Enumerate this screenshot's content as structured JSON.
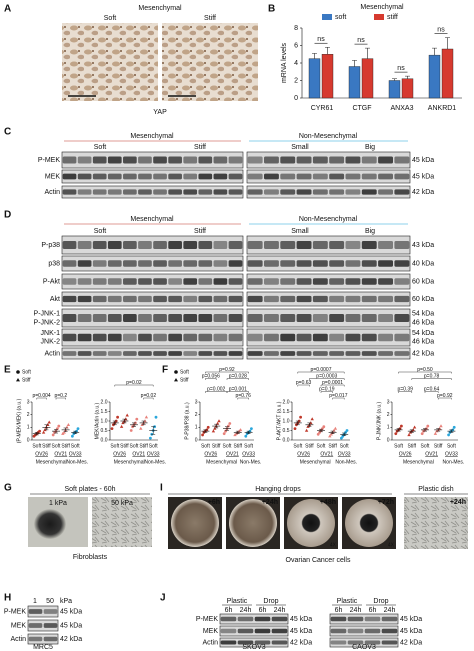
{
  "panels": {
    "A": {
      "label": "A",
      "title": "Mesenchymal",
      "conditions": [
        "Soft",
        "Stiff"
      ],
      "caption": "YAP"
    },
    "B": {
      "label": "B",
      "chart_data": {
        "type": "bar",
        "title": "Mesenchymal",
        "y_label": "mRNA levels",
        "categories": [
          "CYR61",
          "CTGF",
          "ANXA3",
          "ANKRD1"
        ],
        "series": [
          {
            "name": "soft",
            "color": "#3a78c2",
            "values": [
              4.5,
              3.6,
              2.0,
              4.9
            ],
            "errors": [
              0.6,
              0.7,
              0.2,
              0.8
            ]
          },
          {
            "name": "stiff",
            "color": "#d63a2f",
            "values": [
              5.0,
              4.5,
              2.2,
              5.6
            ],
            "errors": [
              0.8,
              1.2,
              0.3,
              1.3
            ]
          }
        ],
        "ylim": [
          0,
          8
        ],
        "yticks": [
          0,
          2,
          4,
          6,
          8
        ],
        "annotations": [
          "ns",
          "ns",
          "ns",
          "ns"
        ]
      }
    },
    "C": {
      "label": "C",
      "groups": [
        "Mesenchymal",
        "Non-Mesenchymal"
      ],
      "subgroups": [
        "Soft",
        "Stiff",
        "Small",
        "Big"
      ],
      "rows": [
        {
          "names": [
            "P-MEK"
          ],
          "kda": [
            "45 kDa"
          ]
        },
        {
          "names": [
            "MEK"
          ],
          "kda": [
            "45 kDa"
          ]
        },
        {
          "names": [
            "Actin"
          ],
          "kda": [
            "42 kDa"
          ]
        }
      ]
    },
    "D": {
      "label": "D",
      "groups": [
        "Mesenchymal",
        "Non-Mesenchymal"
      ],
      "subgroups": [
        "Soft",
        "Stiff",
        "Small",
        "Big"
      ],
      "rows": [
        {
          "names": [
            "P-p38"
          ],
          "kda": [
            "43 kDa"
          ]
        },
        {
          "names": [
            "p38"
          ],
          "kda": [
            "40 kDa"
          ]
        },
        {
          "names": [
            "P-Akt"
          ],
          "kda": [
            "60 kDa"
          ]
        },
        {
          "names": [
            "Akt"
          ],
          "kda": [
            "60 kDa"
          ]
        },
        {
          "names": [
            "P-JNK-1",
            "P-JNK-2"
          ],
          "kda": [
            "54 kDa",
            "46 kDa"
          ]
        },
        {
          "names": [
            "JNK-1",
            "JNK-2"
          ],
          "kda": [
            "54 kDa",
            "46 kDa"
          ]
        },
        {
          "names": [
            "Actin"
          ],
          "kda": [
            "42 kDa"
          ]
        }
      ]
    },
    "E": {
      "label": "E",
      "legend": [
        "Soft",
        "Stiff"
      ],
      "x_labels": [
        "Soft",
        "Stiff",
        "Soft",
        "Stiff",
        "Soft"
      ],
      "cell_lines": [
        "OV26",
        "OV21",
        "OV33"
      ],
      "colors": [
        "#c0392b",
        "#e8817a",
        "#2aa7dc"
      ],
      "groups": [
        "Mesenchymal",
        "Non-Mes."
      ],
      "plots": [
        {
          "y_label": "(P-MEK/MEK) (a.u.)",
          "ylim": [
            0,
            3
          ],
          "yticks": [
            0,
            1,
            2,
            3
          ],
          "data": [
            {
              "points": [
                0.3,
                0.4,
                0.5,
                0.6,
                0.7
              ],
              "mean": 0.5,
              "err": 0.1
            },
            {
              "points": [
                0.6,
                0.8,
                1.0,
                1.2,
                1.4
              ],
              "mean": 1.0,
              "err": 0.2
            },
            {
              "points": [
                0.4,
                0.6,
                0.7,
                0.9,
                1.1
              ],
              "mean": 0.7,
              "err": 0.15
            },
            {
              "points": [
                0.5,
                0.6,
                0.8,
                1.0,
                1.2
              ],
              "mean": 0.8,
              "err": 0.15
            },
            {
              "points": [
                0.3,
                0.5,
                0.6,
                0.7,
                0.9
              ],
              "mean": 0.6,
              "err": 0.1
            }
          ],
          "annotations": [
            "p=0.004",
            "p=0.2"
          ]
        },
        {
          "y_label": "MEK/Actin (a.u.)",
          "ylim": [
            0,
            2
          ],
          "yticks": [
            {
              "value": 0,
              "label": "0.0"
            },
            0.5,
            {
              "value": 1,
              "label": "1.0"
            },
            1.5,
            {
              "value": 2,
              "label": "2.0"
            }
          ],
          "data": [
            {
              "points": [
                0.6,
                0.8,
                0.9,
                1.0,
                1.2
              ],
              "mean": 0.9,
              "err": 0.1
            },
            {
              "points": [
                0.7,
                0.9,
                1.0,
                1.1,
                1.3
              ],
              "mean": 1.0,
              "err": 0.1
            },
            {
              "points": [
                0.5,
                0.7,
                0.8,
                0.9,
                1.1
              ],
              "mean": 0.8,
              "err": 0.1
            },
            {
              "points": [
                0.6,
                0.8,
                0.9,
                1.0,
                1.2
              ],
              "mean": 0.9,
              "err": 0.1
            },
            {
              "points": [
                0.1,
                0.3,
                0.5,
                0.7,
                1.2
              ],
              "mean": 0.5,
              "err": 0.2
            }
          ],
          "annotations": [
            "p=0.02",
            "p=0.02"
          ]
        }
      ]
    },
    "F": {
      "label": "F",
      "legend": [
        "Soft",
        "Stiff"
      ],
      "x_labels": [
        "Soft",
        "Stiff",
        "Soft",
        "Stiff",
        "Soft"
      ],
      "cell_lines": [
        "OV26",
        "OV21",
        "OV33"
      ],
      "colors": [
        "#c0392b",
        "#e8817a",
        "#2aa7dc"
      ],
      "groups": [
        "Mesenchymal",
        "Non-Mes."
      ],
      "plots": [
        {
          "y_label": "P-P38/P38 (a.u.)",
          "ylim": [
            0,
            3
          ],
          "yticks": [
            0,
            1,
            2,
            3
          ],
          "data": [
            {
              "points": [
                0.4,
                0.6,
                0.7,
                0.8,
                1.0
              ],
              "mean": 0.7,
              "err": 0.1
            },
            {
              "points": [
                0.7,
                0.9,
                1.1,
                1.3,
                1.5
              ],
              "mean": 1.1,
              "err": 0.15
            },
            {
              "points": [
                0.5,
                0.7,
                0.9,
                1.1,
                1.3
              ],
              "mean": 0.9,
              "err": 0.15
            },
            {
              "points": [
                0.4,
                0.5,
                0.6,
                0.7,
                0.8
              ],
              "mean": 0.6,
              "err": 0.1
            },
            {
              "points": [
                0.3,
                0.5,
                0.6,
                0.7,
                0.9
              ],
              "mean": 0.6,
              "err": 0.1
            }
          ],
          "annotations": [
            "p=0.92",
            "p=0.056",
            "p=0.028",
            "p=0.002",
            "p=0.001",
            "p=0.76"
          ]
        },
        {
          "y_label": "P-AKT/AKT (a.u.)",
          "ylim": [
            0,
            2
          ],
          "yticks": [
            {
              "value": 0,
              "label": "0.0"
            },
            0.5,
            {
              "value": 1,
              "label": "1.0"
            },
            1.5,
            {
              "value": 2,
              "label": "2.0"
            }
          ],
          "data": [
            {
              "points": [
                0.6,
                0.8,
                0.9,
                1.0,
                1.2
              ],
              "mean": 0.9,
              "err": 0.1
            },
            {
              "points": [
                0.5,
                0.7,
                0.8,
                0.9,
                1.1
              ],
              "mean": 0.8,
              "err": 0.1
            },
            {
              "points": [
                0.3,
                0.4,
                0.5,
                0.6,
                0.7
              ],
              "mean": 0.5,
              "err": 0.07
            },
            {
              "points": [
                0.2,
                0.3,
                0.4,
                0.5,
                0.6
              ],
              "mean": 0.4,
              "err": 0.07
            },
            {
              "points": [
                0.1,
                0.2,
                0.3,
                0.4,
                0.5
              ],
              "mean": 0.3,
              "err": 0.07
            }
          ],
          "annotations": [
            "p=0.0007",
            "p=0.0003",
            "p=0.63",
            "p=0.0001",
            "p=0.19",
            "p=0.017"
          ]
        },
        {
          "y_label": "P-JNK/JNK (a.u.)",
          "ylim": [
            0,
            3
          ],
          "yticks": [
            0,
            1,
            2,
            3
          ],
          "data": [
            {
              "points": [
                0.5,
                0.7,
                0.8,
                0.9,
                1.1
              ],
              "mean": 0.8,
              "err": 0.1
            },
            {
              "points": [
                0.4,
                0.6,
                0.7,
                0.8,
                1.0
              ],
              "mean": 0.7,
              "err": 0.1
            },
            {
              "points": [
                0.5,
                0.7,
                0.8,
                0.9,
                1.1
              ],
              "mean": 0.8,
              "err": 0.1
            },
            {
              "points": [
                0.5,
                0.7,
                0.8,
                0.9,
                1.1
              ],
              "mean": 0.8,
              "err": 0.1
            },
            {
              "points": [
                0.4,
                0.6,
                0.7,
                0.8,
                1.0
              ],
              "mean": 0.7,
              "err": 0.1
            }
          ],
          "annotations": [
            "p=0.50",
            "p=0.78",
            "p=0.39",
            "p=0.64",
            "p=0.92"
          ]
        }
      ]
    },
    "G": {
      "label": "G",
      "title": "Soft plates - 60h",
      "images": [
        "1 kPa",
        "50 kPa"
      ],
      "caption": "Fibroblasts"
    },
    "I": {
      "label": "I",
      "title": "Hanging drops",
      "images": [
        "+6h",
        "+24h",
        "+48h",
        "+72h"
      ],
      "magnification": "4X",
      "dish_title": "Plastic dish",
      "dish_image": "+24h",
      "caption": "Ovarian Cancer cells"
    },
    "H": {
      "label": "H",
      "lanes": [
        "1",
        "50"
      ],
      "unit": "kPa",
      "rows": [
        {
          "name": "P-MEK",
          "kda": "45 kDa"
        },
        {
          "name": "MEK",
          "kda": "45 kDa"
        },
        {
          "name": "Actin",
          "kda": "42 kDa"
        }
      ],
      "caption": "MRC5"
    },
    "J": {
      "label": "J",
      "conditions": [
        "Plastic",
        "Drop"
      ],
      "times": [
        "6h",
        "24h"
      ],
      "rows": [
        {
          "name": "P-MEK",
          "kda": "45 kDa"
        },
        {
          "name": "MEK",
          "kda": "45 kDa"
        },
        {
          "name": "Actin",
          "kda": "42 kDa"
        }
      ],
      "cell_lines": [
        "SKOV3",
        "CAOV3"
      ]
    }
  }
}
